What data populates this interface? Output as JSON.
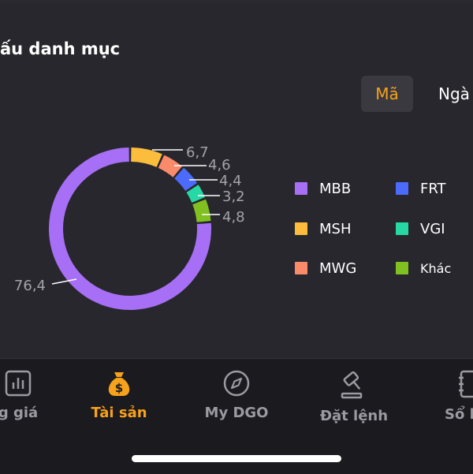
{
  "card": {
    "title": "ấu danh mục",
    "tabs": [
      {
        "label": "Mã",
        "active": true
      },
      {
        "label": "Ngà",
        "active": false
      }
    ]
  },
  "chart_data": {
    "type": "pie",
    "variant": "donut",
    "categories": [
      "MBB",
      "MSH",
      "MWG",
      "FRT",
      "VGI",
      "Khác"
    ],
    "values": [
      76.4,
      6.7,
      4.6,
      4.4,
      3.2,
      4.8
    ],
    "data_labels": [
      "76,4",
      "6,7",
      "4,6",
      "4,4",
      "3,2",
      "4,8"
    ],
    "colors": [
      "#a76ff6",
      "#fbbd3b",
      "#f98b6b",
      "#4d6bfa",
      "#26d9a4",
      "#80c021"
    ]
  },
  "legend": [
    {
      "label": "MBB",
      "color": "#a76ff6"
    },
    {
      "label": "FRT",
      "color": "#4d6bfa"
    },
    {
      "label": "MSH",
      "color": "#fbbd3b"
    },
    {
      "label": "VGI",
      "color": "#26d9a4"
    },
    {
      "label": "MWG",
      "color": "#f98b6b"
    },
    {
      "label": "Khác",
      "color": "#80c021"
    }
  ],
  "bottom_nav": [
    {
      "label": "g giá",
      "icon": "chart-icon",
      "active": false
    },
    {
      "label": "Tài sản",
      "icon": "money-bag-icon",
      "active": true
    },
    {
      "label": "My DGO",
      "icon": "compass-icon",
      "active": false
    },
    {
      "label": "Đặt lệnh",
      "icon": "gavel-icon",
      "active": false
    },
    {
      "label": "Sổ lệ",
      "icon": "notebook-icon",
      "active": false
    }
  ],
  "colors": {
    "accent": "#f7a21b",
    "background": "#1b1a1f",
    "card": "#28272d"
  }
}
